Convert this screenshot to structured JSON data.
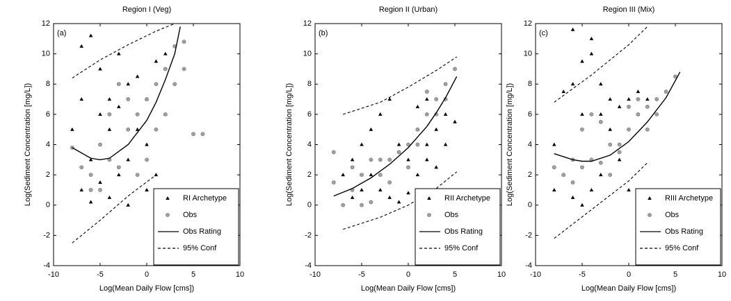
{
  "chart_data": [
    {
      "type": "scatter",
      "title": "Region I (Veg)",
      "panel_label": "(a)",
      "xlabel": "Log(Mean Daily Flow [cms])",
      "ylabel": "Log(Sediment Concentration [mg/L])",
      "xlim": [
        -10,
        10
      ],
      "ylim": [
        -4,
        12
      ],
      "xticks": [
        -10,
        -5,
        0,
        5,
        10
      ],
      "yticks": [
        -4,
        -2,
        0,
        2,
        4,
        6,
        8,
        10,
        12
      ],
      "legend": "lower right",
      "series": [
        {
          "name": "RI Archetype",
          "color": "#000000",
          "marker": "triangle",
          "x": [
            -7,
            -6,
            -5,
            -4,
            -3,
            -2,
            -5,
            -6,
            -7,
            -4,
            -2,
            0,
            1,
            0,
            -1,
            1,
            2,
            -3,
            -8,
            -7,
            -5,
            -3,
            -1,
            0,
            -6,
            2,
            -4,
            -2
          ],
          "values": [
            10.5,
            11.2,
            9,
            7,
            6.5,
            8,
            6,
            3,
            1,
            0.5,
            0,
            1,
            2,
            7,
            8.5,
            9.5,
            10,
            10,
            5,
            7,
            1.5,
            2,
            5,
            4,
            0.2,
            6,
            5,
            3
          ]
        },
        {
          "name": "Obs",
          "color": "#a0a0a0",
          "marker": "circle",
          "x": [
            -8,
            -7,
            -6,
            -5,
            -4,
            -3,
            -2,
            -1,
            0,
            1,
            2,
            3,
            4,
            5,
            6,
            -3,
            -2,
            0,
            1,
            -5,
            -1,
            2,
            3,
            4,
            -4,
            -6
          ],
          "values": [
            3.8,
            2.5,
            2,
            4,
            3,
            2.5,
            5,
            6,
            7,
            8,
            9,
            10.5,
            9,
            4.7,
            4.7,
            8,
            7,
            3,
            5,
            1,
            2,
            6,
            8,
            10.8,
            6,
            1
          ]
        },
        {
          "name": "Obs Rating",
          "color": "#000000",
          "marker": "line",
          "x": [
            -8,
            -6,
            -5,
            -4,
            -2,
            0,
            1,
            2,
            3,
            3.6
          ],
          "values": [
            3.8,
            3.1,
            3.0,
            3.1,
            4.0,
            5.6,
            6.8,
            8.3,
            10.0,
            11.8
          ]
        },
        {
          "name": "95% Conf",
          "color": "#000000",
          "marker": "dashed",
          "x": [
            -8,
            -5,
            -2,
            1,
            3,
            null,
            -8,
            -5,
            -2,
            1
          ],
          "values": [
            8.4,
            9.6,
            10.6,
            11.5,
            12,
            null,
            -2.5,
            -1.0,
            0.6,
            2.0
          ]
        }
      ]
    },
    {
      "type": "scatter",
      "title": "Region II (Urban)",
      "panel_label": "(b)",
      "xlabel": "Log(Mean Daily Flow [cms])",
      "ylabel": "Log(Sediment Concentration [mg/L])",
      "xlim": [
        -10,
        10
      ],
      "ylim": [
        -4,
        12
      ],
      "xticks": [
        -10,
        -5,
        0,
        5,
        10
      ],
      "yticks": [
        -4,
        -2,
        0,
        2,
        4,
        6,
        8,
        10,
        12
      ],
      "legend": "lower right",
      "series": [
        {
          "name": "RII Archetype",
          "color": "#000000",
          "marker": "triangle",
          "x": [
            -7,
            -6,
            -5,
            -4,
            -3,
            -2,
            -1,
            0,
            1,
            2,
            3,
            4,
            5,
            -3,
            -2,
            -1,
            0,
            1,
            2,
            3,
            4,
            -4,
            -5,
            1,
            2,
            -6
          ],
          "values": [
            2,
            3,
            4,
            5,
            6,
            7,
            4,
            3,
            5,
            4,
            5,
            6,
            5.5,
            1,
            0.5,
            0.2,
            0.8,
            2,
            3,
            2.5,
            4,
            2,
            1,
            6.5,
            7,
            0.5
          ]
        },
        {
          "name": "Obs",
          "color": "#a0a0a0",
          "marker": "circle",
          "x": [
            -8,
            -8,
            -7,
            -6,
            -5,
            -4,
            -3,
            -2,
            -1,
            0,
            1,
            2,
            3,
            4,
            5,
            -5,
            -4,
            -3,
            -2,
            0,
            1,
            2,
            3,
            4,
            -6
          ],
          "values": [
            3.5,
            1.5,
            0,
            2.5,
            2,
            3,
            2,
            3,
            3.5,
            4,
            5,
            6,
            7,
            8,
            9,
            0,
            0.2,
            3,
            1.5,
            2.5,
            4,
            7.5,
            6,
            7,
            1
          ]
        },
        {
          "name": "Obs Rating",
          "color": "#000000",
          "marker": "line",
          "x": [
            -8,
            -6,
            -4,
            -2,
            0,
            2,
            3,
            4,
            5.2
          ],
          "values": [
            0.6,
            1.1,
            1.8,
            2.7,
            3.8,
            5.2,
            6.1,
            7.1,
            8.5
          ]
        },
        {
          "name": "95% Conf",
          "color": "#000000",
          "marker": "dashed",
          "x": [
            -7,
            -3,
            0,
            3,
            5.2,
            null,
            -7,
            -3,
            0,
            3,
            5.2
          ],
          "values": [
            6.0,
            6.8,
            7.8,
            8.9,
            9.8,
            null,
            -1.6,
            -0.8,
            0.0,
            1.1,
            2.2
          ]
        }
      ]
    },
    {
      "type": "scatter",
      "title": "Region III (Mix)",
      "panel_label": "(c)",
      "xlabel": "Log(Mean Daily Flow [cms])",
      "ylabel": "Log(Sediment Concentration [mg/L])",
      "xlim": [
        -10,
        10
      ],
      "ylim": [
        -4,
        12
      ],
      "xticks": [
        -10,
        -5,
        0,
        5,
        10
      ],
      "yticks": [
        -4,
        -2,
        0,
        2,
        4,
        6,
        8,
        10,
        12
      ],
      "legend": "lower right",
      "series": [
        {
          "name": "RIII Archetype",
          "color": "#000000",
          "marker": "triangle",
          "x": [
            -8,
            -7,
            -6,
            -5,
            -4,
            -3,
            -2,
            -1,
            0,
            1,
            -6,
            -5,
            -4,
            -3,
            -2,
            -1,
            0,
            1,
            -7,
            -5,
            -3,
            -4,
            -6,
            2,
            -8
          ],
          "values": [
            4,
            7.5,
            8,
            9.5,
            10,
            8,
            7,
            6.5,
            7,
            7.5,
            0.5,
            0,
            1,
            2,
            5,
            3,
            1,
            6,
            2,
            6,
            6,
            11,
            11.6,
            7,
            1
          ]
        },
        {
          "name": "Obs",
          "color": "#a0a0a0",
          "marker": "circle",
          "x": [
            -8,
            -7,
            -6,
            -5,
            -4,
            -3,
            -2,
            -1,
            0,
            1,
            2,
            3,
            4,
            5,
            -5,
            -4,
            -3,
            0,
            1,
            -6,
            -2,
            -1,
            2,
            3
          ],
          "values": [
            2.5,
            2,
            3,
            2.5,
            3,
            2.8,
            4,
            4,
            5,
            6,
            6.5,
            7,
            7.5,
            8.5,
            5,
            6,
            5.5,
            6.5,
            7,
            1.5,
            2,
            3.5,
            5,
            6
          ]
        },
        {
          "name": "Obs Rating",
          "color": "#000000",
          "marker": "line",
          "x": [
            -8,
            -6,
            -5,
            -4,
            -2,
            0,
            2,
            4,
            5.5
          ],
          "values": [
            3.4,
            3.0,
            2.9,
            2.9,
            3.3,
            4.2,
            5.5,
            7.1,
            8.8
          ]
        },
        {
          "name": "95% Conf",
          "color": "#000000",
          "marker": "dashed",
          "x": [
            -8,
            -4,
            0,
            2,
            null,
            -8,
            -4,
            0,
            2
          ],
          "values": [
            6.8,
            8.6,
            10.6,
            11.8,
            null,
            -2.2,
            -0.3,
            1.6,
            2.8
          ]
        }
      ]
    }
  ]
}
